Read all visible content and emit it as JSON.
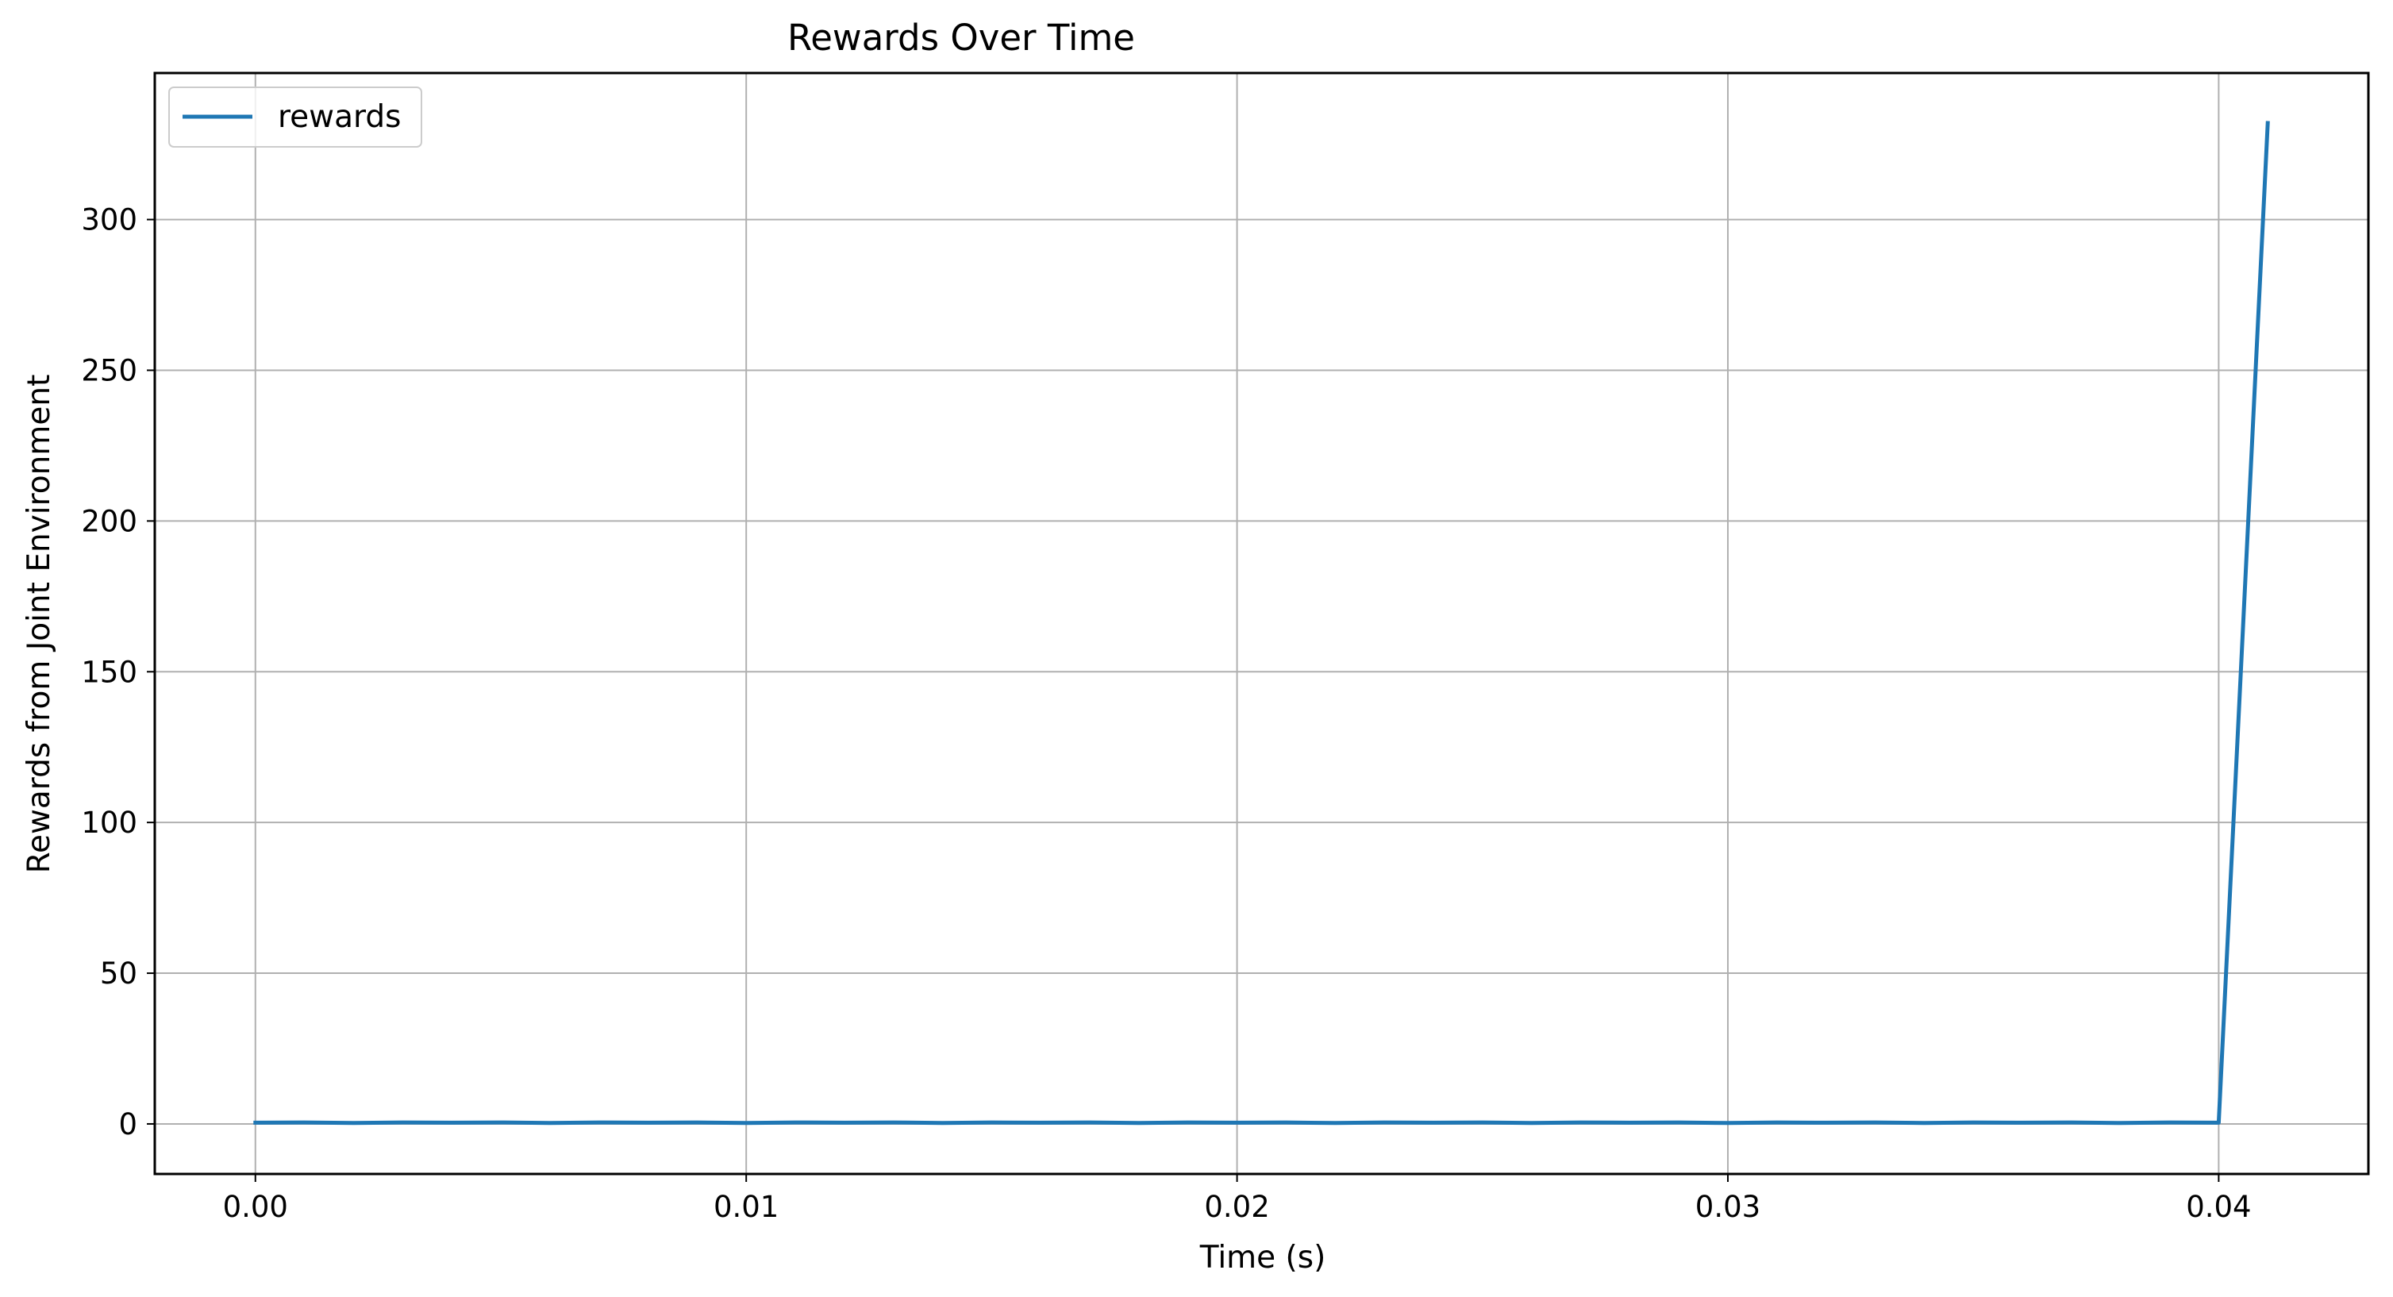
{
  "chart_data": {
    "type": "line",
    "title": "Rewards Over Time",
    "xlabel": "Time (s)",
    "ylabel": "Rewards from Joint Environment",
    "xlim": [
      -0.00205,
      0.04305
    ],
    "ylim": [
      -16.6,
      348.6
    ],
    "xticks": [
      0.0,
      0.01,
      0.02,
      0.03,
      0.04
    ],
    "xtick_labels": [
      "0.00",
      "0.01",
      "0.02",
      "0.03",
      "0.04"
    ],
    "yticks": [
      0,
      50,
      100,
      150,
      200,
      250,
      300
    ],
    "ytick_labels": [
      "0",
      "50",
      "100",
      "150",
      "200",
      "250",
      "300"
    ],
    "grid": true,
    "legend_position": "upper-left",
    "series": [
      {
        "name": "rewards",
        "color": "#1f77b4",
        "x": [
          0.0,
          0.001,
          0.002,
          0.003,
          0.004,
          0.005,
          0.006,
          0.007,
          0.008,
          0.009,
          0.01,
          0.011,
          0.012,
          0.013,
          0.014,
          0.015,
          0.016,
          0.017,
          0.018,
          0.019,
          0.02,
          0.021,
          0.022,
          0.023,
          0.024,
          0.025,
          0.026,
          0.027,
          0.028,
          0.029,
          0.03,
          0.031,
          0.032,
          0.033,
          0.034,
          0.035,
          0.036,
          0.037,
          0.038,
          0.039,
          0.04,
          0.041
        ],
        "y": [
          0.4,
          0.5,
          0.3,
          0.5,
          0.4,
          0.5,
          0.3,
          0.5,
          0.4,
          0.5,
          0.3,
          0.5,
          0.4,
          0.5,
          0.3,
          0.5,
          0.4,
          0.5,
          0.3,
          0.5,
          0.4,
          0.5,
          0.3,
          0.5,
          0.4,
          0.5,
          0.3,
          0.5,
          0.4,
          0.5,
          0.3,
          0.5,
          0.4,
          0.5,
          0.3,
          0.5,
          0.4,
          0.5,
          0.3,
          0.5,
          0.4,
          332
        ]
      }
    ]
  }
}
